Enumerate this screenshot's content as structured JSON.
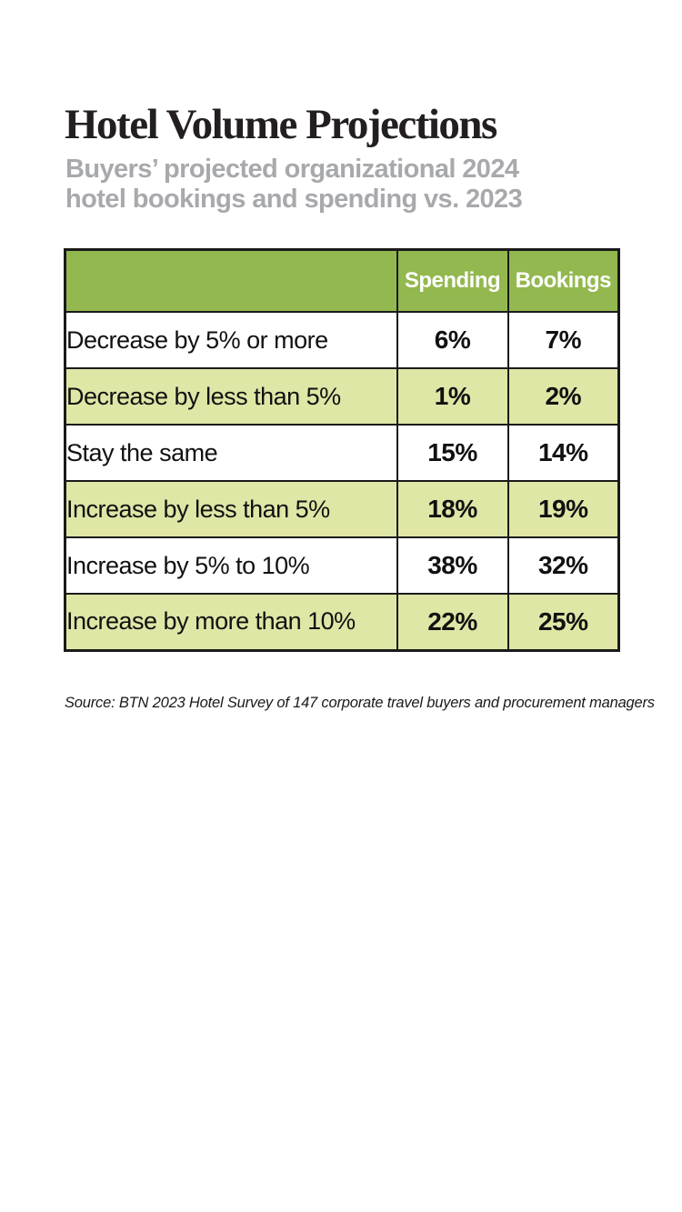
{
  "chart_data": {
    "type": "table",
    "title": "Hotel Volume Projections",
    "subtitle_lines": [
      "Buyers’ projected organizational 2024",
      "hotel bookings and spending vs. 2023"
    ],
    "columns": [
      "Spending",
      "Bookings"
    ],
    "rows": [
      {
        "label": "Decrease by 5% or more",
        "values": [
          "6%",
          "7%"
        ]
      },
      {
        "label": "Decrease by less than 5%",
        "values": [
          "1%",
          "2%"
        ]
      },
      {
        "label": "Stay the same",
        "values": [
          "15%",
          "14%"
        ]
      },
      {
        "label": "Increase by less than 5%",
        "values": [
          "18%",
          "19%"
        ]
      },
      {
        "label": "Increase by 5% to 10%",
        "values": [
          "38%",
          "32%"
        ]
      },
      {
        "label": "Increase by more than 10%",
        "values": [
          "22%",
          "25%"
        ]
      }
    ],
    "source": "Source: BTN 2023 Hotel Survey of 147 corporate travel buyers and procurement managers"
  },
  "colors": {
    "header_green": "#93b84f",
    "row_alt_green": "#e0e6a6",
    "row_white": "#ffffff",
    "border_black": "#1a1a1a",
    "title_black": "#231f20",
    "subtitle_gray": "#a7a9ac"
  }
}
